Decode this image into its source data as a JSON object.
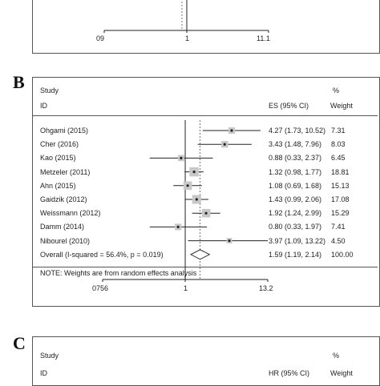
{
  "panel_a": {
    "ticks": [
      "09",
      "1",
      "11.1"
    ]
  },
  "panel_b": {
    "letter": "B",
    "header": {
      "study_line1": "Study",
      "study_line2": "ID",
      "es_label": "ES (95% CI)",
      "pct_line1": "%",
      "pct_line2": "Weight"
    },
    "note": "NOTE: Weights are from random effects analysis",
    "ticks": [
      "0756",
      "1",
      "13.2"
    ]
  },
  "panel_c": {
    "letter": "C",
    "header": {
      "study_line1": "Study",
      "study_line2": "ID",
      "es_label": "HR (95% CI)",
      "pct_line1": "%",
      "pct_line2": "Weight"
    }
  },
  "colors": {
    "line": "#222222",
    "frame": "#555555",
    "marker_box": "#bbbbbb"
  },
  "chart_data": [
    {
      "type": "forest",
      "x_scale": "log",
      "xlim": [
        0.0756,
        13.2
      ],
      "tick_labels": [
        "0756",
        "1",
        "13.2"
      ],
      "reference_line": 1,
      "pooled_line": 1.59,
      "studies": [
        {
          "label": "Ohgami (2015)",
          "es": 4.27,
          "lo": 1.73,
          "hi": 10.52,
          "weight": 7.31,
          "text": "4.27 (1.73, 10.52)",
          "weight_text": "7.31"
        },
        {
          "label": "Cher (2016)",
          "es": 3.43,
          "lo": 1.48,
          "hi": 7.96,
          "weight": 8.03,
          "text": "3.43 (1.48, 7.96)",
          "weight_text": "8.03"
        },
        {
          "label": "Kao (2015)",
          "es": 0.88,
          "lo": 0.33,
          "hi": 2.37,
          "weight": 6.45,
          "text": "0.88 (0.33, 2.37)",
          "weight_text": "6.45"
        },
        {
          "label": "Metzeler (2011)",
          "es": 1.32,
          "lo": 0.98,
          "hi": 1.77,
          "weight": 18.81,
          "text": "1.32 (0.98, 1.77)",
          "weight_text": "18.81"
        },
        {
          "label": "Ahn (2015)",
          "es": 1.08,
          "lo": 0.69,
          "hi": 1.68,
          "weight": 15.13,
          "text": "1.08 (0.69, 1.68)",
          "weight_text": "15.13"
        },
        {
          "label": "Gaidzik (2012)",
          "es": 1.43,
          "lo": 0.99,
          "hi": 2.06,
          "weight": 17.08,
          "text": "1.43 (0.99, 2.06)",
          "weight_text": "17.08"
        },
        {
          "label": "Weissmann (2012)",
          "es": 1.92,
          "lo": 1.24,
          "hi": 2.99,
          "weight": 15.29,
          "text": "1.92 (1.24, 2.99)",
          "weight_text": "15.29"
        },
        {
          "label": "Damm (2014)",
          "es": 0.8,
          "lo": 0.33,
          "hi": 1.97,
          "weight": 7.41,
          "text": "0.80 (0.33, 1.97)",
          "weight_text": "7.41"
        },
        {
          "label": "Nibourel (2010)",
          "es": 3.97,
          "lo": 1.09,
          "hi": 13.22,
          "weight": 4.5,
          "text": "3.97 (1.09, 13.22)",
          "weight_text": "4.50"
        }
      ],
      "overall": {
        "label": "Overall  (I-squared = 56.4%, p = 0.019)",
        "es": 1.59,
        "lo": 1.19,
        "hi": 2.14,
        "weight": 100.0,
        "text": "1.59 (1.19, 2.14)",
        "weight_text": "100.00"
      }
    }
  ]
}
